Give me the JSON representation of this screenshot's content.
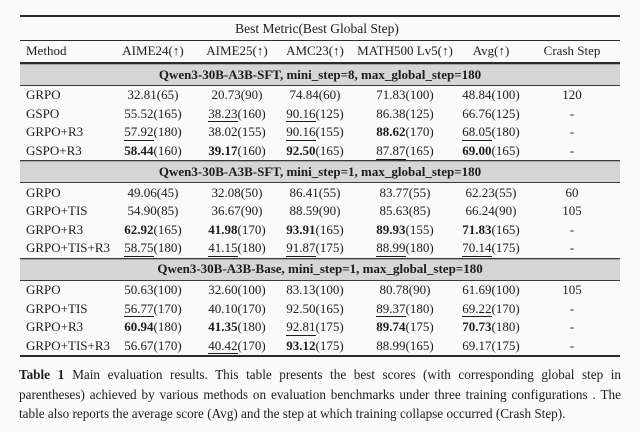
{
  "table": {
    "top_header": "Best Metric(Best Global Step)",
    "columns": [
      "Method",
      "AIME24(↑)",
      "AIME25(↑)",
      "AMC23(↑)",
      "MATH500 Lv5(↑)",
      "Avg(↑)",
      "Crash Step"
    ],
    "style_legend": {
      "b": "bold-best",
      "u": "underline-second-best",
      "p": "plain"
    },
    "sections": [
      {
        "title": "Qwen3-30B-A3B-SFT, mini_step=8, max_global_step=180",
        "rows": [
          {
            "method": "GRPO",
            "metrics": [
              [
                "32.81",
                "(65)",
                "p"
              ],
              [
                "20.73",
                "(90)",
                "p"
              ],
              [
                "74.84",
                "(60)",
                "p"
              ],
              [
                "71.83",
                "(100)",
                "p"
              ],
              [
                "48.84",
                "(100)",
                "p"
              ]
            ],
            "crash": "120"
          },
          {
            "method": "GSPO",
            "metrics": [
              [
                "55.52",
                "(165)",
                "p"
              ],
              [
                "38.23",
                "(160)",
                "u"
              ],
              [
                "90.16",
                "(125)",
                "u"
              ],
              [
                "86.38",
                "(125)",
                "p"
              ],
              [
                "66.76",
                "(125)",
                "p"
              ]
            ],
            "crash": "-"
          },
          {
            "method": "GRPO+R3",
            "metrics": [
              [
                "57.92",
                "(180)",
                "u"
              ],
              [
                "38.02",
                "(155)",
                "p"
              ],
              [
                "90.16",
                "(155)",
                "u"
              ],
              [
                "88.62",
                "(170)",
                "b"
              ],
              [
                "68.05",
                "(180)",
                "u"
              ]
            ],
            "crash": "-"
          },
          {
            "method": "GSPO+R3",
            "metrics": [
              [
                "58.44",
                "(160)",
                "b"
              ],
              [
                "39.17",
                "(160)",
                "b"
              ],
              [
                "92.50",
                "(165)",
                "b"
              ],
              [
                "87.87",
                "(165)",
                "u"
              ],
              [
                "69.00",
                "(165)",
                "b"
              ]
            ],
            "crash": "-"
          }
        ]
      },
      {
        "title": "Qwen3-30B-A3B-SFT, mini_step=1, max_global_step=180",
        "rows": [
          {
            "method": "GRPO",
            "metrics": [
              [
                "49.06",
                "(45)",
                "p"
              ],
              [
                "32.08",
                "(50)",
                "p"
              ],
              [
                "86.41",
                "(55)",
                "p"
              ],
              [
                "83.77",
                "(55)",
                "p"
              ],
              [
                "62.23",
                "(55)",
                "p"
              ]
            ],
            "crash": "60"
          },
          {
            "method": "GRPO+TIS",
            "metrics": [
              [
                "54.90",
                "(85)",
                "p"
              ],
              [
                "36.67",
                "(90)",
                "p"
              ],
              [
                "88.59",
                "(90)",
                "p"
              ],
              [
                "85.63",
                "(85)",
                "p"
              ],
              [
                "66.24",
                "(90)",
                "p"
              ]
            ],
            "crash": "105"
          },
          {
            "method": "GRPO+R3",
            "metrics": [
              [
                "62.92",
                "(165)",
                "b"
              ],
              [
                "41.98",
                "(170)",
                "b"
              ],
              [
                "93.91",
                "(165)",
                "b"
              ],
              [
                "89.93",
                "(155)",
                "b"
              ],
              [
                "71.83",
                "(165)",
                "b"
              ]
            ],
            "crash": "-"
          },
          {
            "method": "GRPO+TIS+R3",
            "metrics": [
              [
                "58.75",
                "(180)",
                "u"
              ],
              [
                "41.15",
                "(180)",
                "u"
              ],
              [
                "91.87",
                "(175)",
                "u"
              ],
              [
                "88.99",
                "(180)",
                "u"
              ],
              [
                "70.14",
                "(175)",
                "u"
              ]
            ],
            "crash": "-"
          }
        ]
      },
      {
        "title": "Qwen3-30B-A3B-Base, mini_step=1, max_global_step=180",
        "rows": [
          {
            "method": "GRPO",
            "metrics": [
              [
                "50.63",
                "(100)",
                "p"
              ],
              [
                "32.60",
                "(100)",
                "p"
              ],
              [
                "83.13",
                "(100)",
                "p"
              ],
              [
                "80.78",
                "(90)",
                "p"
              ],
              [
                "61.69",
                "(100)",
                "p"
              ]
            ],
            "crash": "105"
          },
          {
            "method": "GRPO+TIS",
            "metrics": [
              [
                "56.77",
                "(170)",
                "u"
              ],
              [
                "40.10",
                "(170)",
                "p"
              ],
              [
                "92.50",
                "(165)",
                "p"
              ],
              [
                "89.37",
                "(180)",
                "u"
              ],
              [
                "69.22",
                "(170)",
                "u"
              ]
            ],
            "crash": "-"
          },
          {
            "method": "GRPO+R3",
            "metrics": [
              [
                "60.94",
                "(180)",
                "b"
              ],
              [
                "41.35",
                "(180)",
                "b"
              ],
              [
                "92.81",
                "(175)",
                "u"
              ],
              [
                "89.74",
                "(175)",
                "b"
              ],
              [
                "70.73",
                "(180)",
                "b"
              ]
            ],
            "crash": "-"
          },
          {
            "method": "GRPO+TIS+R3",
            "metrics": [
              [
                "56.67",
                "(170)",
                "p"
              ],
              [
                "40.42",
                "(170)",
                "u"
              ],
              [
                "93.12",
                "(175)",
                "b"
              ],
              [
                "88.99",
                "(165)",
                "p"
              ],
              [
                "69.17",
                "(175)",
                "p"
              ]
            ],
            "crash": "-"
          }
        ]
      }
    ]
  },
  "caption": {
    "label": "Table 1",
    "text": "Main evaluation results. This table presents the best scores (with corresponding global step in parentheses) achieved by various methods on evaluation benchmarks under three training configurations . The table also reports the average score (Avg) and the step at which training collapse occurred (Crash Step)."
  },
  "colors": {
    "page_background": "#fafafa",
    "text": "#1c1c1c",
    "rule": "#2b2b2b",
    "section_band_background": "#d6d6d6"
  }
}
